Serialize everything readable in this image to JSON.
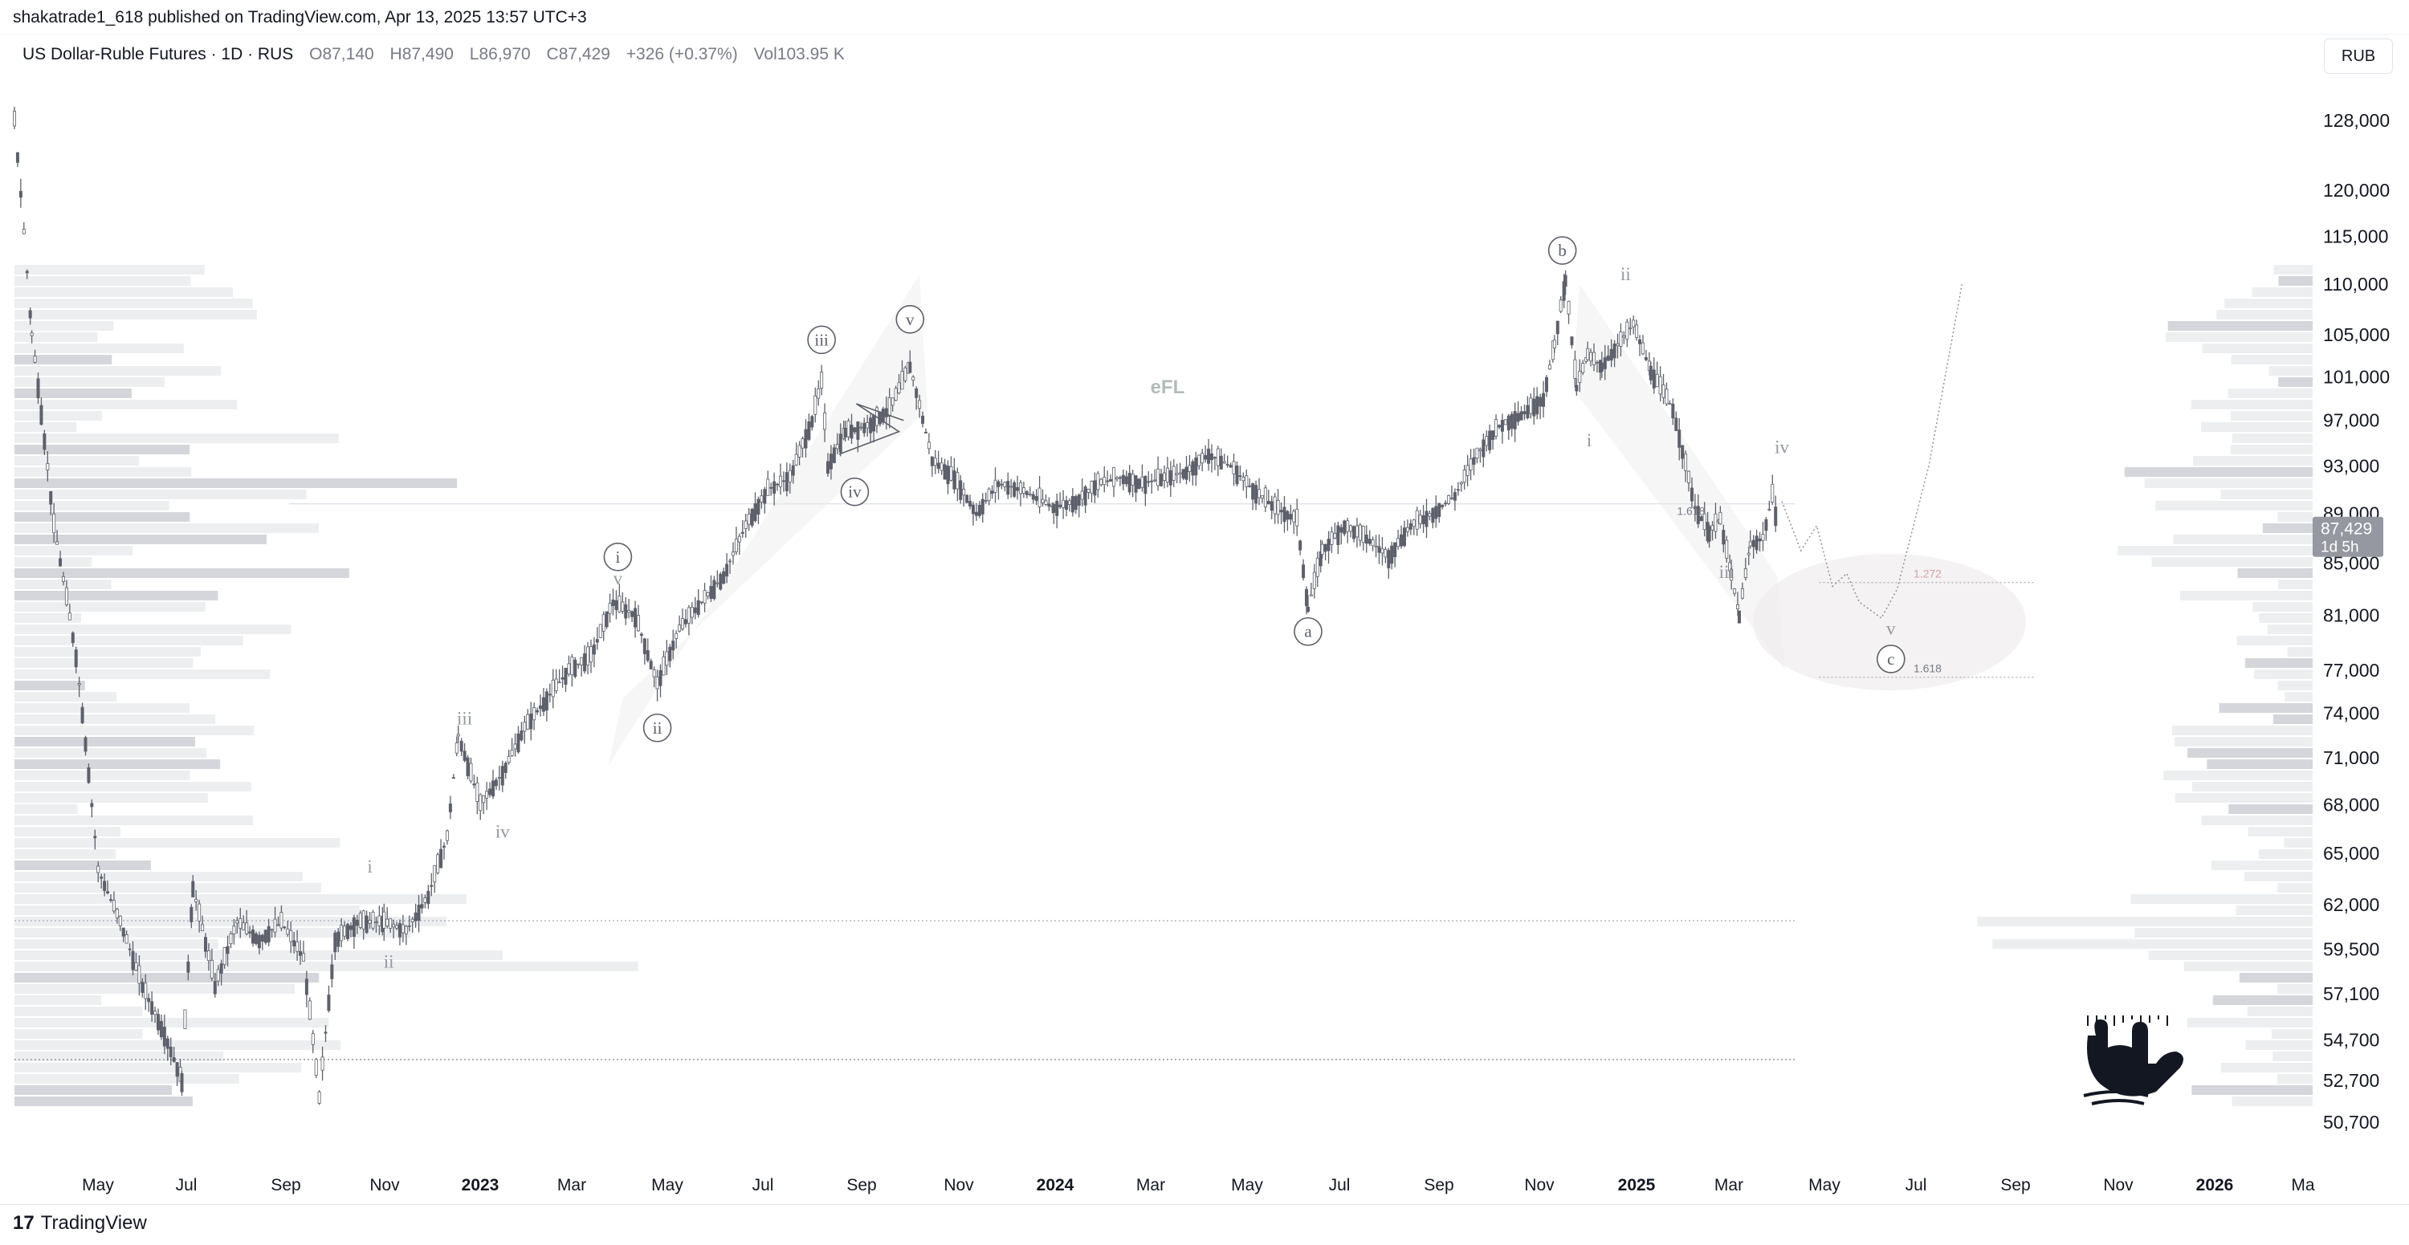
{
  "publish_bar": "shakatrade1_618 published on TradingView.com, Apr 13, 2025 13:57 UTC+3",
  "legend": {
    "symbol": "US Dollar-Ruble Futures · 1D · RUS",
    "o_label": "O",
    "o_value": "87,140",
    "h_label": "H",
    "h_value": "87,490",
    "l_label": "L",
    "l_value": "86,970",
    "c_label": "C",
    "c_value": "87,429",
    "change": "+326 (+0.37%)",
    "vol_label": "Vol",
    "vol_value": "103.95 K"
  },
  "currency_button": "RUB",
  "footer": {
    "logo_glyph": "17",
    "brand": "TradingView"
  },
  "colors": {
    "candle": "#5d606b",
    "profile": "#dde0e3",
    "profile_dark": "#b2b5be",
    "price_badge": "#9598a1",
    "drawing": "#b2b5be"
  },
  "chart_data": {
    "type": "candlestick",
    "symbol": "US Dollar-Ruble Futures",
    "interval": "1D",
    "currency": "RUB",
    "scale": "log",
    "ylim": [
      49500,
      135000
    ],
    "x_tick_labels": [
      "May",
      "Jul",
      "Sep",
      "Nov",
      "2023",
      "Mar",
      "May",
      "Jul",
      "Sep",
      "Nov",
      "2024",
      "Mar",
      "May",
      "Jul",
      "Sep",
      "Nov",
      "2025",
      "Mar",
      "May",
      "Jul",
      "Sep",
      "Nov",
      "2026",
      "Ma"
    ],
    "y_tick_labels": [
      "128,000",
      "120,000",
      "115,000",
      "110,000",
      "105,000",
      "101,000",
      "97,000",
      "93,000",
      "89,000",
      "85,000",
      "81,000",
      "77,000",
      "74,000",
      "71,000",
      "68,000",
      "65,000",
      "62,000",
      "59,500",
      "57,100",
      "54,700",
      "52,700",
      "50,700"
    ],
    "y_tick_values": [
      128000,
      120000,
      115000,
      110000,
      105000,
      101000,
      97000,
      93000,
      89000,
      85000,
      81000,
      77000,
      74000,
      71000,
      68000,
      65000,
      62000,
      59500,
      57100,
      54700,
      52700,
      50700
    ],
    "last_price": "87,429",
    "last_price_value": 87429,
    "countdown": "1d 5h",
    "watermark": "eFL",
    "price_path": [
      [
        "2022-03-21",
        128000
      ],
      [
        "2022-04-01",
        105000
      ],
      [
        "2022-04-15",
        88000
      ],
      [
        "2022-04-29",
        78000
      ],
      [
        "2022-05-13",
        64000
      ],
      [
        "2022-05-27",
        61000
      ],
      [
        "2022-06-10",
        57500
      ],
      [
        "2022-06-24",
        55000
      ],
      [
        "2022-07-05",
        52700
      ],
      [
        "2022-07-12",
        63000
      ],
      [
        "2022-07-26",
        57500
      ],
      [
        "2022-08-09",
        61000
      ],
      [
        "2022-08-23",
        60000
      ],
      [
        "2022-09-06",
        61000
      ],
      [
        "2022-09-20",
        59000
      ],
      [
        "2022-09-30",
        51800
      ],
      [
        "2022-10-10",
        60000
      ],
      [
        "2022-10-24",
        61000
      ],
      [
        "2022-11-10",
        61000
      ],
      [
        "2022-11-24",
        60500
      ],
      [
        "2022-12-08",
        62500
      ],
      [
        "2022-12-20",
        66000
      ],
      [
        "2022-12-27",
        72500
      ],
      [
        "2023-01-10",
        68000
      ],
      [
        "2023-01-24",
        70000
      ],
      [
        "2023-02-07",
        73000
      ],
      [
        "2023-02-21",
        75000
      ],
      [
        "2023-03-07",
        77000
      ],
      [
        "2023-03-21",
        78000
      ],
      [
        "2023-04-04",
        82000
      ],
      [
        "2023-04-18",
        81000
      ],
      [
        "2023-05-02",
        76000
      ],
      [
        "2023-05-16",
        80000
      ],
      [
        "2023-05-30",
        82000
      ],
      [
        "2023-06-13",
        84000
      ],
      [
        "2023-06-27",
        88000
      ],
      [
        "2023-07-11",
        91000
      ],
      [
        "2023-07-25",
        92000
      ],
      [
        "2023-08-08",
        97000
      ],
      [
        "2023-08-14",
        100500
      ],
      [
        "2023-08-18",
        93000
      ],
      [
        "2023-08-29",
        96000
      ],
      [
        "2023-09-12",
        96500
      ],
      [
        "2023-09-26",
        98000
      ],
      [
        "2023-10-09",
        102000
      ],
      [
        "2023-10-23",
        93500
      ],
      [
        "2023-11-06",
        92000
      ],
      [
        "2023-11-20",
        89000
      ],
      [
        "2023-12-04",
        91500
      ],
      [
        "2023-12-18",
        91000
      ],
      [
        "2024-01-08",
        89500
      ],
      [
        "2024-01-22",
        90000
      ],
      [
        "2024-02-05",
        91500
      ],
      [
        "2024-02-19",
        92000
      ],
      [
        "2024-03-04",
        91500
      ],
      [
        "2024-03-18",
        92000
      ],
      [
        "2024-04-01",
        92500
      ],
      [
        "2024-04-15",
        94000
      ],
      [
        "2024-04-29",
        93000
      ],
      [
        "2024-05-13",
        91000
      ],
      [
        "2024-05-27",
        89500
      ],
      [
        "2024-06-10",
        88500
      ],
      [
        "2024-06-17",
        81500
      ],
      [
        "2024-06-26",
        86000
      ],
      [
        "2024-07-10",
        88000
      ],
      [
        "2024-07-24",
        87000
      ],
      [
        "2024-08-07",
        85500
      ],
      [
        "2024-08-21",
        88000
      ],
      [
        "2024-09-04",
        89000
      ],
      [
        "2024-09-18",
        90500
      ],
      [
        "2024-10-02",
        94000
      ],
      [
        "2024-10-16",
        96500
      ],
      [
        "2024-10-30",
        97500
      ],
      [
        "2024-11-13",
        99000
      ],
      [
        "2024-11-20",
        104000
      ],
      [
        "2024-11-27",
        110500
      ],
      [
        "2024-12-04",
        100000
      ],
      [
        "2024-12-11",
        103000
      ],
      [
        "2024-12-20",
        102000
      ],
      [
        "2025-01-09",
        106000
      ],
      [
        "2025-01-20",
        101500
      ],
      [
        "2025-02-03",
        98000
      ],
      [
        "2025-02-17",
        89500
      ],
      [
        "2025-02-26",
        87500
      ],
      [
        "2025-03-05",
        88500
      ],
      [
        "2025-03-12",
        84000
      ],
      [
        "2025-03-17",
        81000
      ],
      [
        "2025-03-24",
        86500
      ],
      [
        "2025-04-01",
        87000
      ],
      [
        "2025-04-07",
        90500
      ],
      [
        "2025-04-11",
        87429
      ]
    ],
    "annotations": [
      {
        "label": "i",
        "date": "2023-04-07",
        "price": 85500,
        "style": "circle"
      },
      {
        "label": "ii",
        "date": "2023-05-02",
        "price": 73000,
        "style": "circle"
      },
      {
        "label": "iii",
        "date": "2023-08-14",
        "price": 104500,
        "style": "circle"
      },
      {
        "label": "iv",
        "date": "2023-09-04",
        "price": 90800,
        "style": "circle"
      },
      {
        "label": "v",
        "date": "2023-10-09",
        "price": 106500,
        "style": "circle"
      },
      {
        "label": "a",
        "date": "2024-06-17",
        "price": 79800,
        "style": "circle"
      },
      {
        "label": "b",
        "date": "2024-11-25",
        "price": 113500,
        "style": "circle"
      },
      {
        "label": "c",
        "date": "2025-06-21",
        "price": 77800,
        "style": "circle"
      },
      {
        "label": "i",
        "date": "2022-11-01",
        "price": 64200,
        "style": "plain"
      },
      {
        "label": "ii",
        "date": "2022-11-13",
        "price": 58800,
        "style": "plain"
      },
      {
        "label": "iii",
        "date": "2022-12-31",
        "price": 73600,
        "style": "plain"
      },
      {
        "label": "iv",
        "date": "2023-01-24",
        "price": 66300,
        "style": "plain"
      },
      {
        "label": "v",
        "date": "2023-04-07",
        "price": 83800,
        "style": "plain"
      },
      {
        "label": "i",
        "date": "2024-12-12",
        "price": 95200,
        "style": "plain"
      },
      {
        "label": "ii",
        "date": "2025-01-04",
        "price": 111000,
        "style": "plain"
      },
      {
        "label": "iii",
        "date": "2025-03-09",
        "price": 84300,
        "style": "plain"
      },
      {
        "label": "iv",
        "date": "2025-04-13",
        "price": 94600,
        "style": "plain"
      },
      {
        "label": "v",
        "date": "2025-06-21",
        "price": 80000,
        "style": "plain"
      }
    ],
    "fib_levels": [
      {
        "label": "1.618",
        "date": "2025-02-17",
        "price": 88500
      },
      {
        "label": "1.272",
        "date": "2025-06-01",
        "price": 83500
      },
      {
        "label": "1.618",
        "date": "2025-06-01",
        "price": 76500
      }
    ],
    "projection_path": [
      [
        "2025-04-13",
        90000
      ],
      [
        "2025-04-25",
        86000
      ],
      [
        "2025-05-05",
        88000
      ],
      [
        "2025-05-15",
        83200
      ],
      [
        "2025-05-24",
        84200
      ],
      [
        "2025-06-01",
        82000
      ],
      [
        "2025-06-15",
        80800
      ],
      [
        "2025-06-25",
        83000
      ],
      [
        "2025-07-15",
        93000
      ],
      [
        "2025-08-05",
        110000
      ]
    ]
  }
}
